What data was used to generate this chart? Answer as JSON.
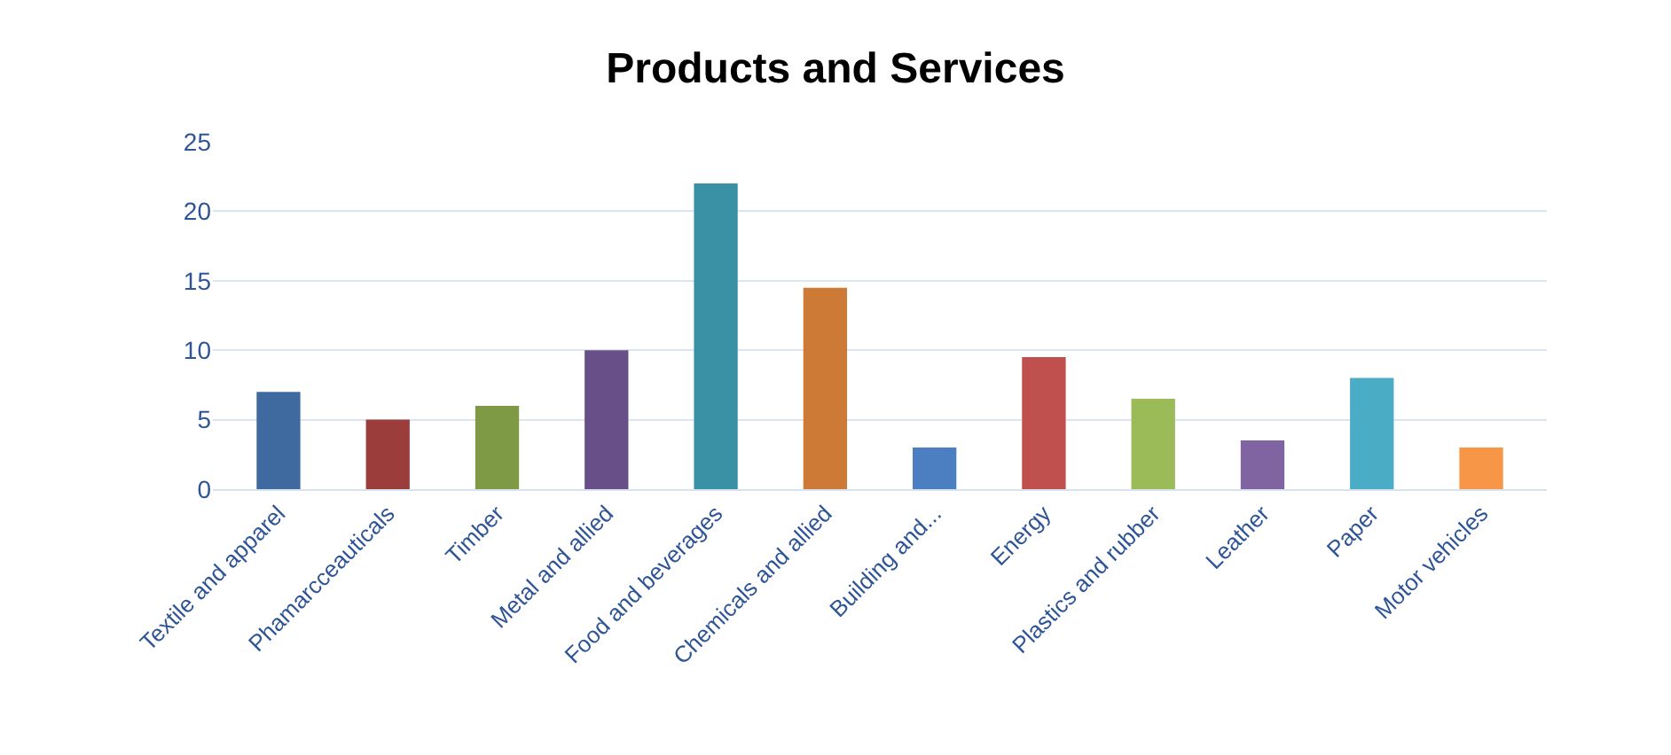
{
  "chart_data": {
    "type": "bar",
    "title": "Products and Services",
    "categories": [
      "Textile and apparel",
      "Phamarcceauticals",
      "Timber",
      "Metal and allied",
      "Food and beverages",
      "Chemicals and allied",
      "Building and...",
      "Energy",
      "Plastics and rubber",
      "Leather",
      "Paper",
      "Motor vehicles"
    ],
    "values": [
      7,
      5,
      6,
      10,
      22,
      14.5,
      3,
      9.5,
      6.5,
      3.5,
      8,
      3
    ],
    "colors": [
      "#3f6aa0",
      "#9b3e3b",
      "#7e9a44",
      "#684f88",
      "#3a90a5",
      "#cc7a35",
      "#4b7fc2",
      "#c0504d",
      "#9bbb59",
      "#8064a2",
      "#4bacc6",
      "#f79646"
    ],
    "ylim": [
      0,
      25
    ],
    "yticks": [
      0,
      5,
      10,
      15,
      20,
      25
    ],
    "grid": "y"
  }
}
